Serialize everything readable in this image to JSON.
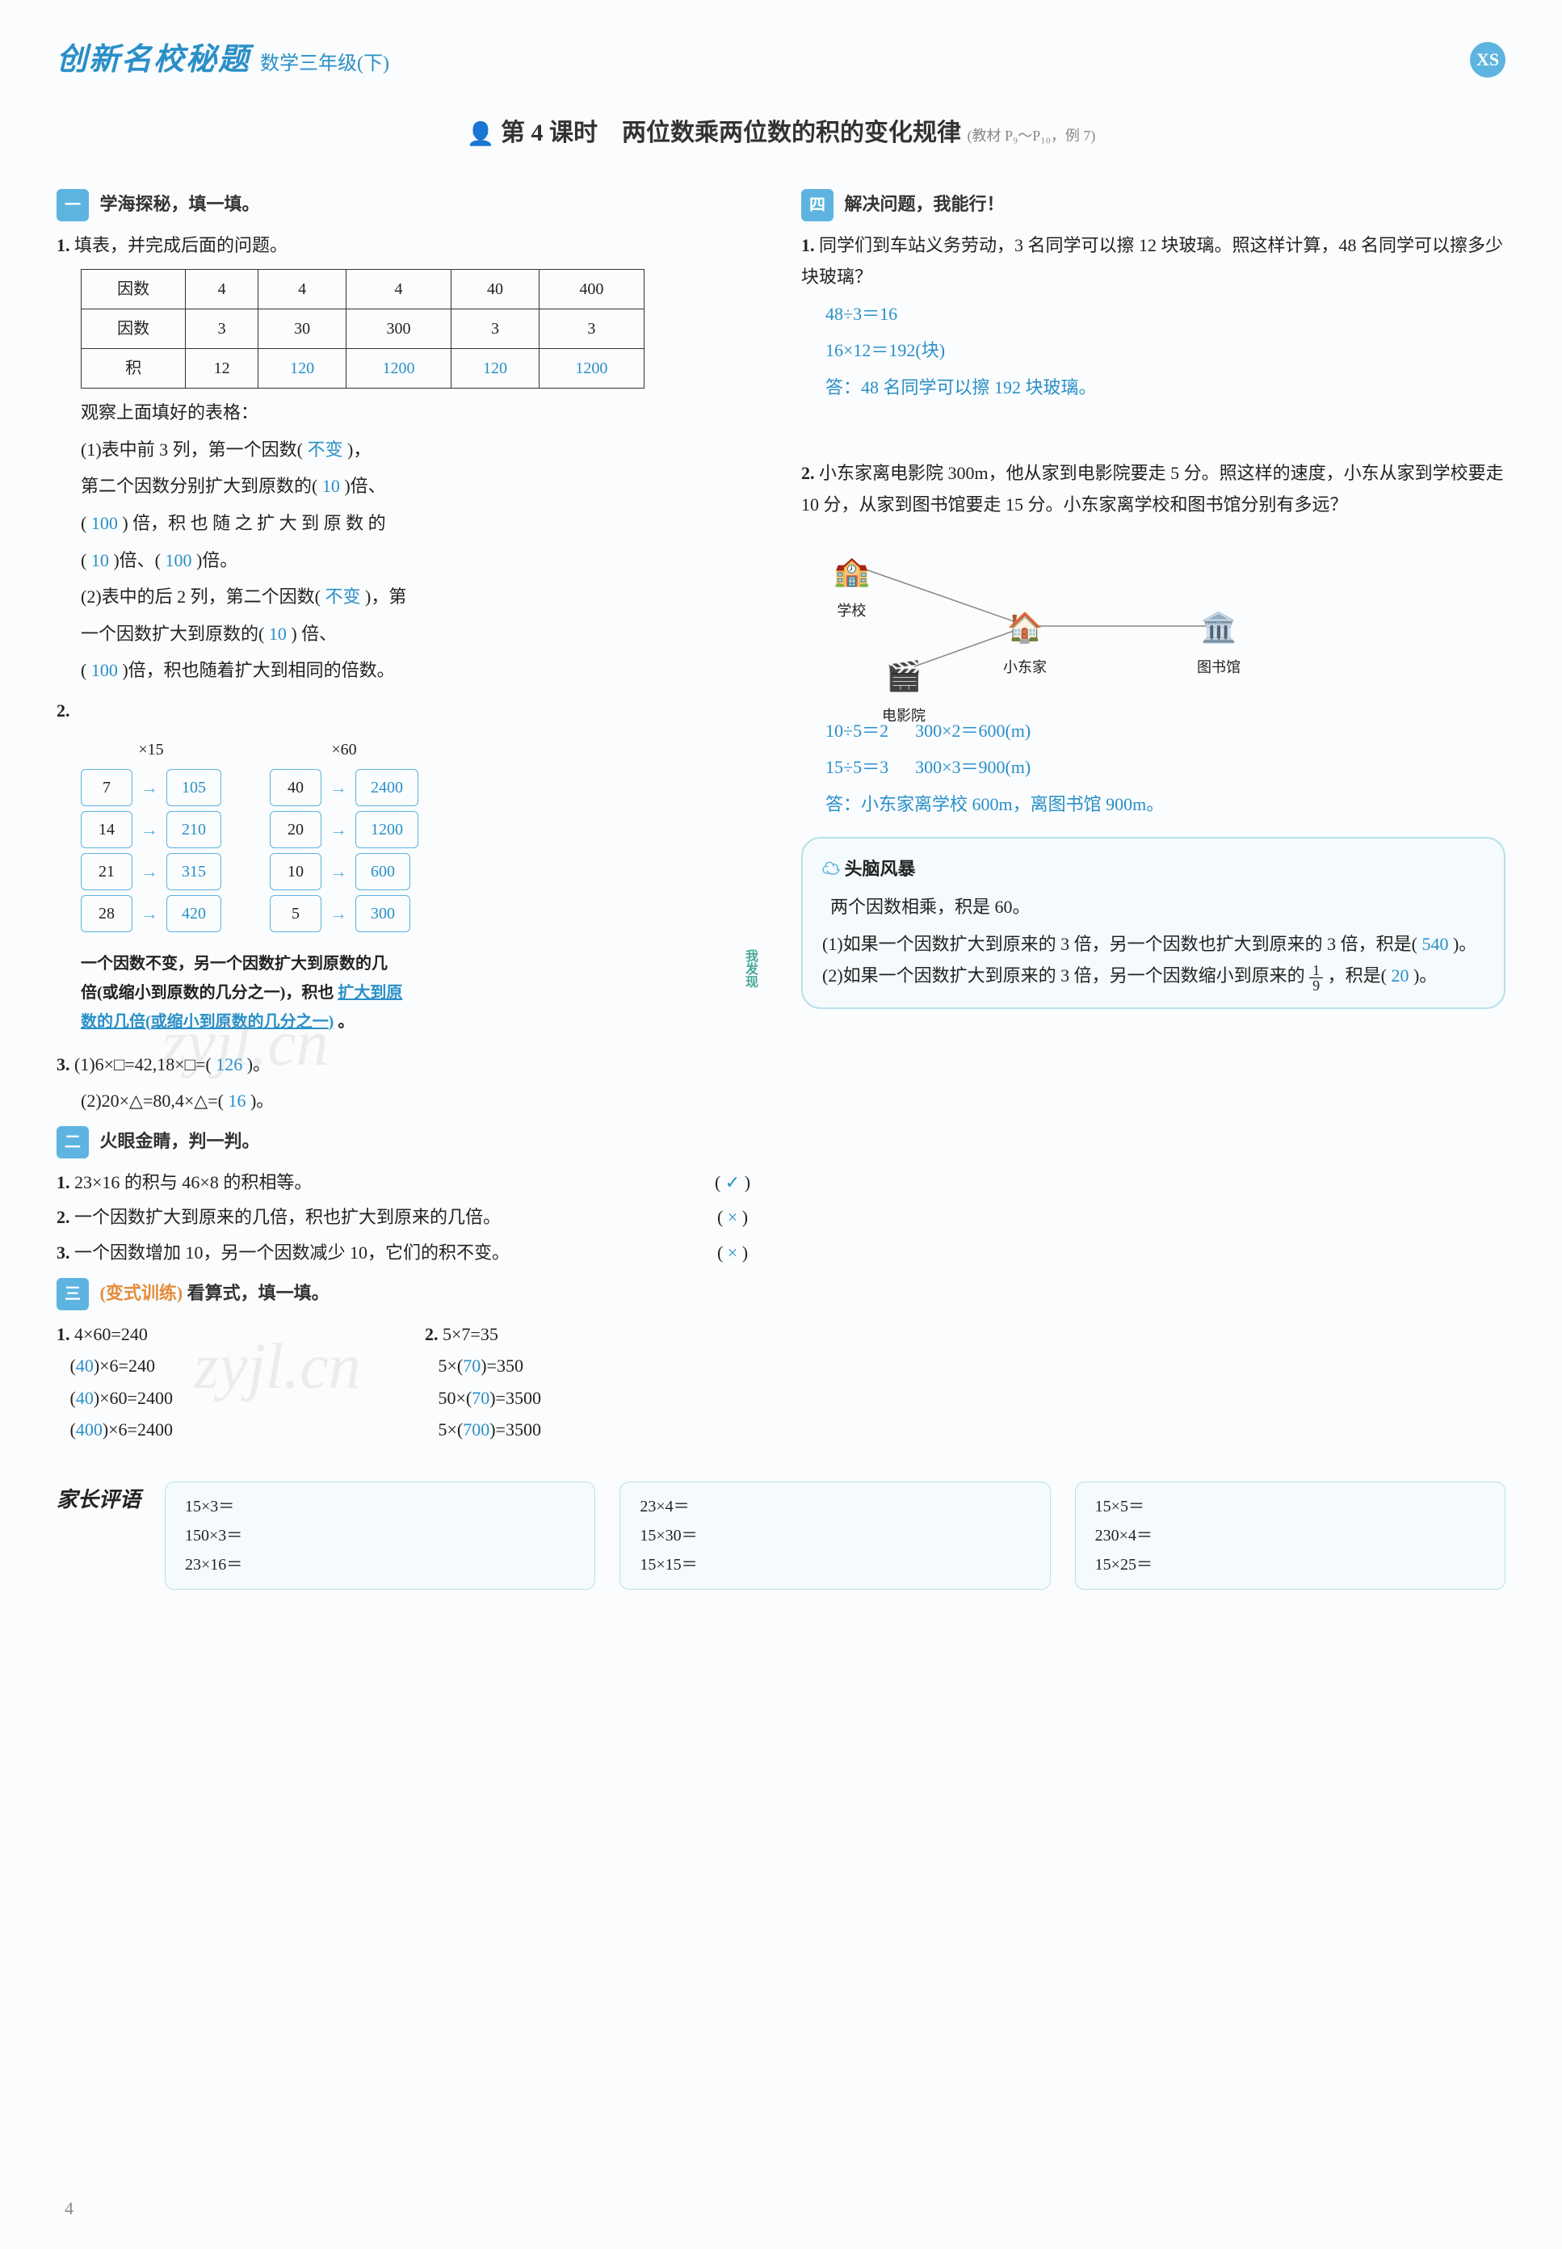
{
  "header": {
    "brand": "创新名校秘题",
    "grade": "数学三年级(下)",
    "badge": "XS"
  },
  "lesson": {
    "title_prefix": "第 4 课时",
    "title": "两位数乘两位数的积的变化规律",
    "title_suffix": "(教材 P₉～P₁₀，例 7)"
  },
  "sec1": {
    "marker": "一",
    "title": "学海探秘，填一填。",
    "q1_label": "1.",
    "q1_text": "填表，并完成后面的问题。",
    "table": {
      "rows": [
        [
          "因数",
          "4",
          "4",
          "4",
          "40",
          "400"
        ],
        [
          "因数",
          "3",
          "30",
          "300",
          "3",
          "3"
        ],
        [
          "积",
          "12",
          "120",
          "1200",
          "120",
          "1200"
        ]
      ]
    },
    "observe": "观察上面填好的表格：",
    "p1a": "(1)表中前 3 列，第一个因数(",
    "p1a_ans": "不变",
    "p1a_end": ")，",
    "p1b": "第二个因数分别扩大到原数的(",
    "p1b_ans": "10",
    "p1b_end": ")倍、",
    "p1c": "(",
    "p1c_ans": "100",
    "p1c_end": ") 倍，积 也 随 之 扩 大 到 原 数 的",
    "p1d": "(",
    "p1d_ans1": "10",
    "p1d_mid": ")倍、(",
    "p1d_ans2": "100",
    "p1d_end": ")倍。",
    "p2a": "(2)表中的后 2 列，第二个因数(",
    "p2a_ans": "不变",
    "p2a_end": ")，第",
    "p2b": "一个因数扩大到原数的(",
    "p2b_ans": "10",
    "p2b_end": ") 倍、",
    "p2c": "(",
    "p2c_ans": "100",
    "p2c_end": ")倍，积也随着扩大到相同的倍数。",
    "q2_label": "2.",
    "flow_left": {
      "label": "×15",
      "inputs": [
        "7",
        "14",
        "21",
        "28"
      ],
      "outputs": [
        "105",
        "210",
        "315",
        "420"
      ]
    },
    "flow_right": {
      "label": "×60",
      "inputs": [
        "40",
        "20",
        "10",
        "5"
      ],
      "outputs": [
        "2400",
        "1200",
        "600",
        "300"
      ]
    },
    "rule_text1": "一个因数不变，另一个因数扩大到原数的几",
    "rule_text2": "倍(或缩小到原数的几分之一)，积也",
    "rule_ans1": "扩大到原",
    "rule_ans2": "数的几倍(或缩小到原数的几分之一)",
    "rule_end": "。",
    "rule_side": "我发现",
    "q3_label": "3.",
    "q3_1": "(1)6×□=42,18×□=(",
    "q3_1_ans": "126",
    "q3_1_end": ")。",
    "q3_2": "(2)20×△=80,4×△=(",
    "q3_2_ans": "16",
    "q3_2_end": ")。"
  },
  "sec2": {
    "marker": "二",
    "title": "火眼金睛，判一判。",
    "items": [
      {
        "text": "23×16 的积与 46×8 的积相等。",
        "ans": "✓"
      },
      {
        "text": "一个因数扩大到原来的几倍，积也扩大到原来的几倍。",
        "ans": "×"
      },
      {
        "text": "一个因数增加 10，另一个因数减少 10，它们的积不变。",
        "ans": "×"
      }
    ]
  },
  "sec3": {
    "marker": "三",
    "variant_label": "(变式训练)",
    "title": "看算式，填一填。",
    "col1": {
      "head_label": "1.",
      "head": "4×60=240",
      "lines": [
        {
          "pre": "(",
          "ans": "40",
          "post": ")×6=240"
        },
        {
          "pre": "(",
          "ans": "40",
          "post": ")×60=2400"
        },
        {
          "pre": "(",
          "ans": "400",
          "post": ")×6=2400"
        }
      ]
    },
    "col2": {
      "head_label": "2.",
      "head": "5×7=35",
      "lines": [
        {
          "pre": "5×(",
          "ans": "70",
          "post": ")=350"
        },
        {
          "pre": "50×(",
          "ans": "70",
          "post": ")=3500"
        },
        {
          "pre": "5×(",
          "ans": "700",
          "post": ")=3500"
        }
      ]
    }
  },
  "sec4": {
    "marker": "四",
    "title": "解决问题，我能行！",
    "q1_label": "1.",
    "q1_text": "同学们到车站义务劳动，3 名同学可以擦 12 块玻璃。照这样计算，48 名同学可以擦多少块玻璃？",
    "q1_work1": "48÷3＝16",
    "q1_work2": "16×12＝192(块)",
    "q1_ans": "答：48 名同学可以擦 192 块玻璃。",
    "q2_label": "2.",
    "q2_text": "小东家离电影院 300m，他从家到电影院要走 5 分。照这样的速度，小东从家到学校要走 10 分，从家到图书馆要走 15 分。小东家离学校和图书馆分别有多远？",
    "map": {
      "school": "学校",
      "home": "小东家",
      "cinema": "电影院",
      "library": "图书馆"
    },
    "q2_work1": "10÷5＝2",
    "q2_work2": "300×2＝600(m)",
    "q2_work3": "15÷5＝3",
    "q2_work4": "300×3＝900(m)",
    "q2_ans": "答：小东家离学校 600m，离图书馆 900m。"
  },
  "brain": {
    "title": "头脑风暴",
    "intro": "两个因数相乘，积是 60。",
    "p1_pre": "(1)如果一个因数扩大到原来的 3 倍，另一个因数也扩大到原来的 3 倍，积是(",
    "p1_ans": "540",
    "p1_end": ")。",
    "p2_pre": "(2)如果一个因数扩大到原来的 3 倍，另一个因数缩小到原来的",
    "p2_frac_num": "1",
    "p2_frac_den": "9",
    "p2_mid": "，积是(",
    "p2_ans": "20",
    "p2_end": ")。"
  },
  "footer": {
    "parent_label": "家长评语",
    "boxes": [
      [
        "15×3＝",
        "150×3＝",
        "23×16＝"
      ],
      [
        "23×4＝",
        "15×30＝",
        "15×15＝"
      ],
      [
        "15×5＝",
        "230×4＝",
        "15×25＝"
      ]
    ]
  },
  "page_number": "4",
  "watermark": "zyjl.cn"
}
